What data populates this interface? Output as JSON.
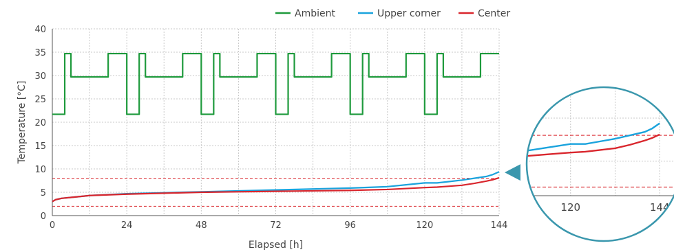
{
  "chart_data": {
    "type": "line",
    "title": "",
    "xlabel": "Elapsed [h]",
    "ylabel": "Temperature [°C]",
    "xlim": [
      0,
      144
    ],
    "ylim": [
      0,
      40
    ],
    "xticks": [
      0,
      24,
      48,
      72,
      96,
      120,
      144
    ],
    "yticks": [
      0,
      5,
      10,
      15,
      20,
      25,
      30,
      35,
      40
    ],
    "grid": true,
    "legend_position": "top-right",
    "reference_lines": [
      {
        "y": 8.0,
        "color": "#d9262d",
        "style": "dashed"
      },
      {
        "y": 2.0,
        "color": "#d9262d",
        "style": "dashed"
      }
    ],
    "series": [
      {
        "name": "Ambient",
        "color": "#1e9a3c",
        "step": true,
        "x": [
          0,
          4,
          6,
          18,
          24,
          28,
          30,
          42,
          48,
          52,
          54,
          66,
          72,
          76,
          78,
          90,
          96,
          100,
          102,
          114,
          120,
          124,
          126,
          138,
          144
        ],
        "y": [
          21.7,
          34.7,
          29.7,
          34.7,
          21.7,
          34.7,
          29.7,
          34.7,
          21.7,
          34.7,
          29.7,
          34.7,
          21.7,
          34.7,
          29.7,
          34.7,
          21.7,
          34.7,
          29.7,
          34.7,
          21.7,
          34.7,
          29.7,
          34.7,
          34.7
        ]
      },
      {
        "name": "Upper corner",
        "color": "#1aa3dd",
        "step": false,
        "x": [
          0,
          1,
          3,
          6,
          12,
          24,
          36,
          48,
          60,
          72,
          84,
          96,
          108,
          114,
          120,
          124,
          128,
          132,
          136,
          140,
          142,
          144
        ],
        "y": [
          3.0,
          3.4,
          3.7,
          3.9,
          4.3,
          4.7,
          4.9,
          5.1,
          5.3,
          5.5,
          5.7,
          5.9,
          6.2,
          6.6,
          7.0,
          7.0,
          7.3,
          7.6,
          8.0,
          8.4,
          8.8,
          9.4
        ]
      },
      {
        "name": "Center",
        "color": "#d9262d",
        "step": false,
        "x": [
          0,
          1,
          3,
          6,
          12,
          24,
          36,
          48,
          60,
          72,
          84,
          96,
          108,
          114,
          120,
          124,
          128,
          132,
          136,
          140,
          142,
          144
        ],
        "y": [
          3.0,
          3.4,
          3.7,
          3.9,
          4.3,
          4.6,
          4.8,
          5.0,
          5.1,
          5.2,
          5.3,
          5.4,
          5.6,
          5.8,
          6.0,
          6.1,
          6.3,
          6.5,
          6.9,
          7.4,
          7.7,
          8.1
        ]
      }
    ],
    "zoom_inset": {
      "xlim": [
        108,
        146
      ],
      "ylim": [
        1.0,
        13.5
      ],
      "xticks": [
        120,
        144
      ],
      "marker_y": 9.4
    }
  }
}
